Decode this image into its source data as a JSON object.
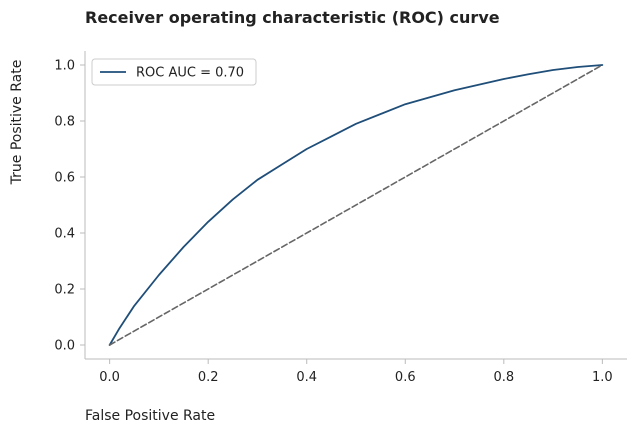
{
  "chart_data": {
    "type": "line",
    "title": "Receiver operating characteristic (ROC) curve",
    "xlabel": "False Positive Rate",
    "ylabel": "True Positive Rate",
    "xlim": [
      -0.05,
      1.05
    ],
    "ylim": [
      -0.05,
      1.05
    ],
    "xticks": [
      0.0,
      0.2,
      0.4,
      0.6,
      0.8,
      1.0
    ],
    "yticks": [
      0.0,
      0.2,
      0.4,
      0.6,
      0.8,
      1.0
    ],
    "xtick_labels": [
      "0.0",
      "0.2",
      "0.4",
      "0.6",
      "0.8",
      "1.0"
    ],
    "ytick_labels": [
      "0.0",
      "0.2",
      "0.4",
      "0.6",
      "0.8",
      "1.0"
    ],
    "grid": false,
    "legend_position": "top-left",
    "series": [
      {
        "name": "ROC AUC = 0.70",
        "color": "#1f4e79",
        "style": "solid",
        "x": [
          0.0,
          0.02,
          0.05,
          0.1,
          0.15,
          0.2,
          0.25,
          0.3,
          0.35,
          0.4,
          0.45,
          0.5,
          0.55,
          0.6,
          0.65,
          0.7,
          0.75,
          0.8,
          0.85,
          0.9,
          0.95,
          1.0
        ],
        "y": [
          0.0,
          0.06,
          0.14,
          0.25,
          0.35,
          0.44,
          0.52,
          0.59,
          0.645,
          0.7,
          0.745,
          0.79,
          0.825,
          0.86,
          0.885,
          0.91,
          0.93,
          0.95,
          0.967,
          0.982,
          0.993,
          1.0
        ]
      },
      {
        "name": "",
        "color": "#666666",
        "style": "dashed",
        "x": [
          0.0,
          1.0
        ],
        "y": [
          0.0,
          1.0
        ]
      }
    ]
  }
}
